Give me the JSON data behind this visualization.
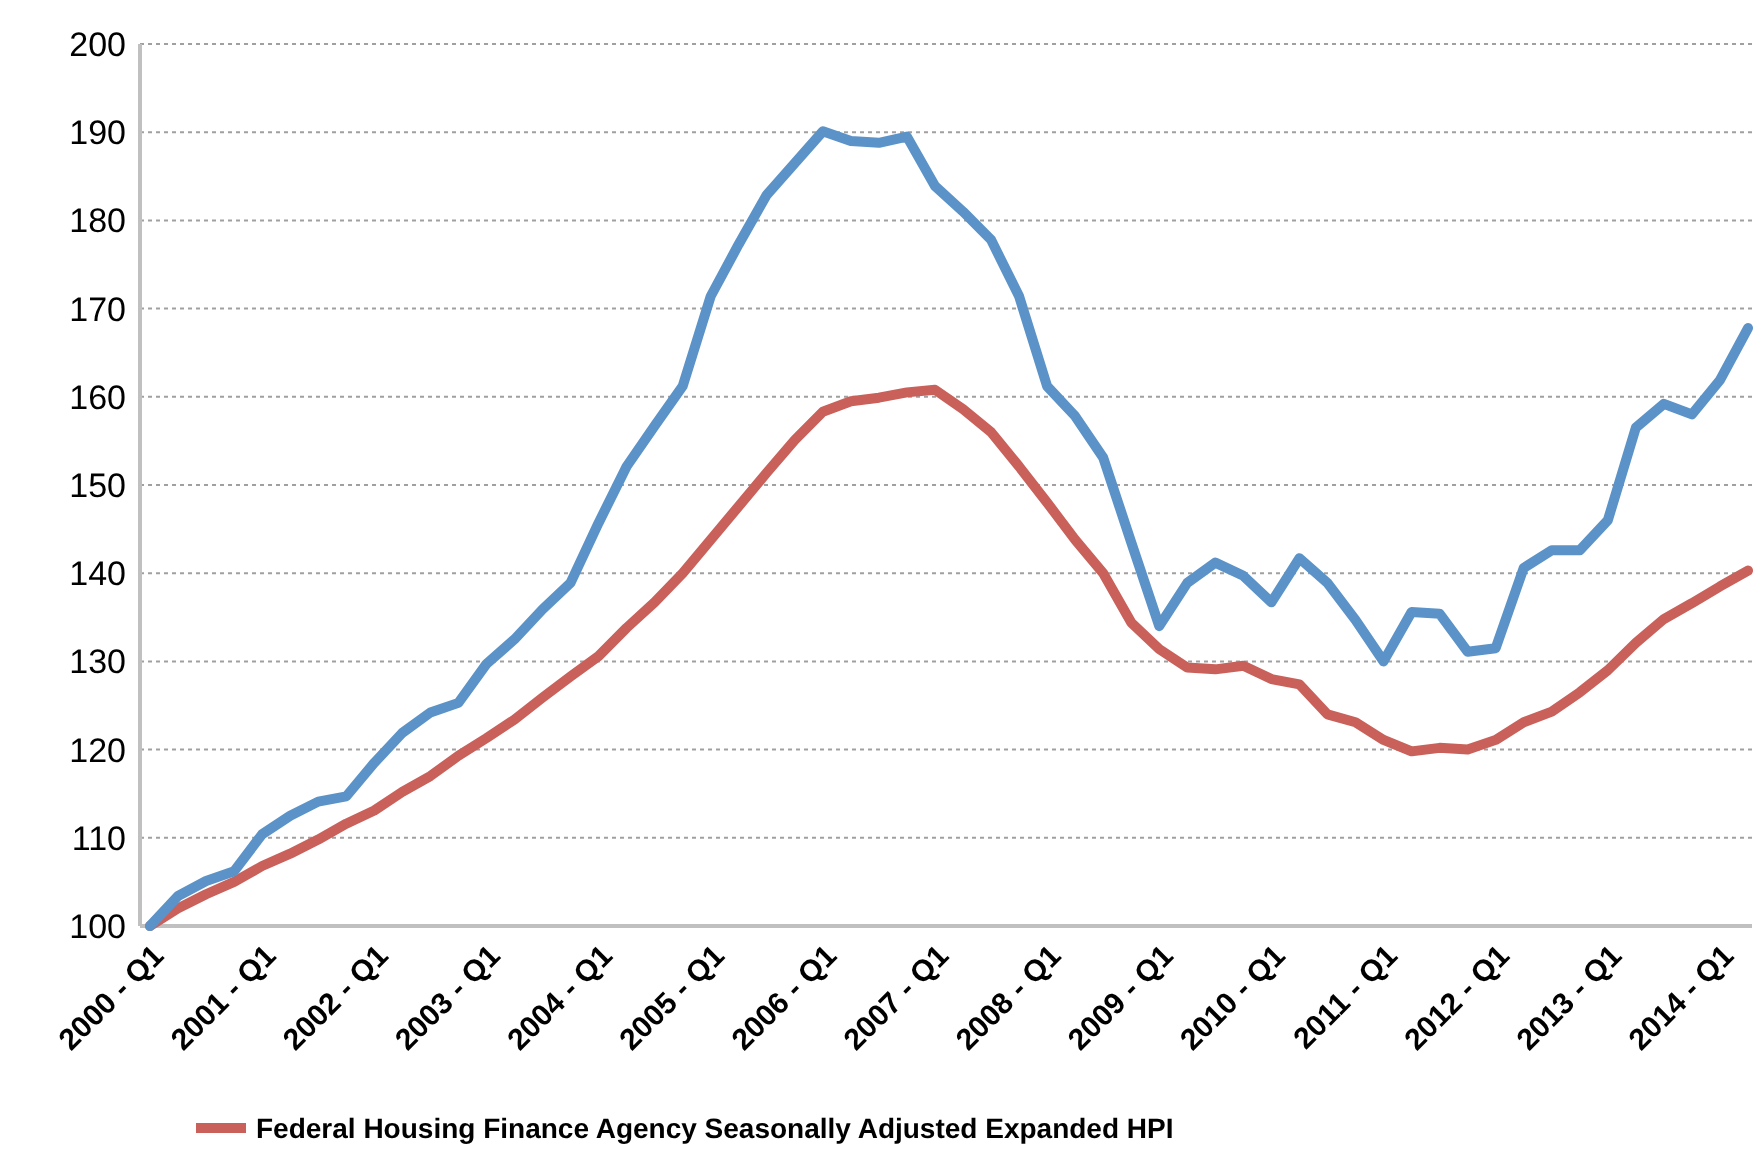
{
  "chart_data": {
    "type": "line",
    "categories": [
      "2000 - Q1",
      null,
      null,
      null,
      "2001 - Q1",
      null,
      null,
      null,
      "2002 - Q1",
      null,
      null,
      null,
      "2003 - Q1",
      null,
      null,
      null,
      "2004 - Q1",
      null,
      null,
      null,
      "2005 - Q1",
      null,
      null,
      null,
      "2006 - Q1",
      null,
      null,
      null,
      "2007 - Q1",
      null,
      null,
      null,
      "2008 - Q1",
      null,
      null,
      null,
      "2009 - Q1",
      null,
      null,
      null,
      "2010 - Q1",
      null,
      null,
      null,
      "2011 - Q1",
      null,
      null,
      null,
      "2012 - Q1",
      null,
      null,
      null,
      "2013 - Q1",
      null,
      null,
      null,
      "2014 - Q1",
      null
    ],
    "series": [
      {
        "name": "Federal Housing Finance Agency Seasonally Adjusted Expanded HPI",
        "color": "#c9605a",
        "values": [
          100,
          102.0,
          103.6,
          105.0,
          106.8,
          108.2,
          109.8,
          111.6,
          113.1,
          115.2,
          117.0,
          119.3,
          121.3,
          123.4,
          125.9,
          128.3,
          130.6,
          133.8,
          136.7,
          140.0,
          143.8,
          147.6,
          151.4,
          155.1,
          158.3,
          159.5,
          159.9,
          160.5,
          160.8,
          158.6,
          156.0,
          152.1,
          148.0,
          143.8,
          140.0,
          134.4,
          131.4,
          129.3,
          129.1,
          129.5,
          128.0,
          127.4,
          124.0,
          123.1,
          121.1,
          119.8,
          120.2,
          120.0,
          121.1,
          123.1,
          124.3,
          126.5,
          129.0,
          132.1,
          134.8,
          136.6,
          138.5,
          140.3
        ]
      },
      {
        "color": "#5b93c8",
        "values": [
          100,
          103.4,
          105.1,
          106.2,
          110.4,
          112.5,
          114.1,
          114.7,
          118.5,
          121.9,
          124.2,
          125.3,
          129.7,
          132.5,
          135.9,
          138.9,
          145.7,
          152.1,
          156.7,
          161.2,
          171.4,
          177.3,
          182.9,
          186.5,
          190.1,
          189.0,
          188.8,
          189.5,
          183.9,
          181.0,
          177.8,
          171.4,
          161.2,
          157.8,
          153.1,
          143.5,
          134.0,
          138.9,
          141.2,
          139.7,
          136.7,
          141.7,
          138.9,
          134.7,
          130.0,
          135.6,
          135.4,
          131.1,
          131.5,
          140.6,
          142.6,
          142.6,
          146.0,
          156.5,
          159.2,
          158.0,
          161.9,
          167.8
        ]
      }
    ],
    "ylim": [
      100,
      200
    ],
    "yticks": [
      100,
      110,
      120,
      130,
      140,
      150,
      160,
      170,
      180,
      190,
      200
    ],
    "grid": "y",
    "legend": "bottom",
    "marker": "none",
    "line_style": "solid"
  }
}
